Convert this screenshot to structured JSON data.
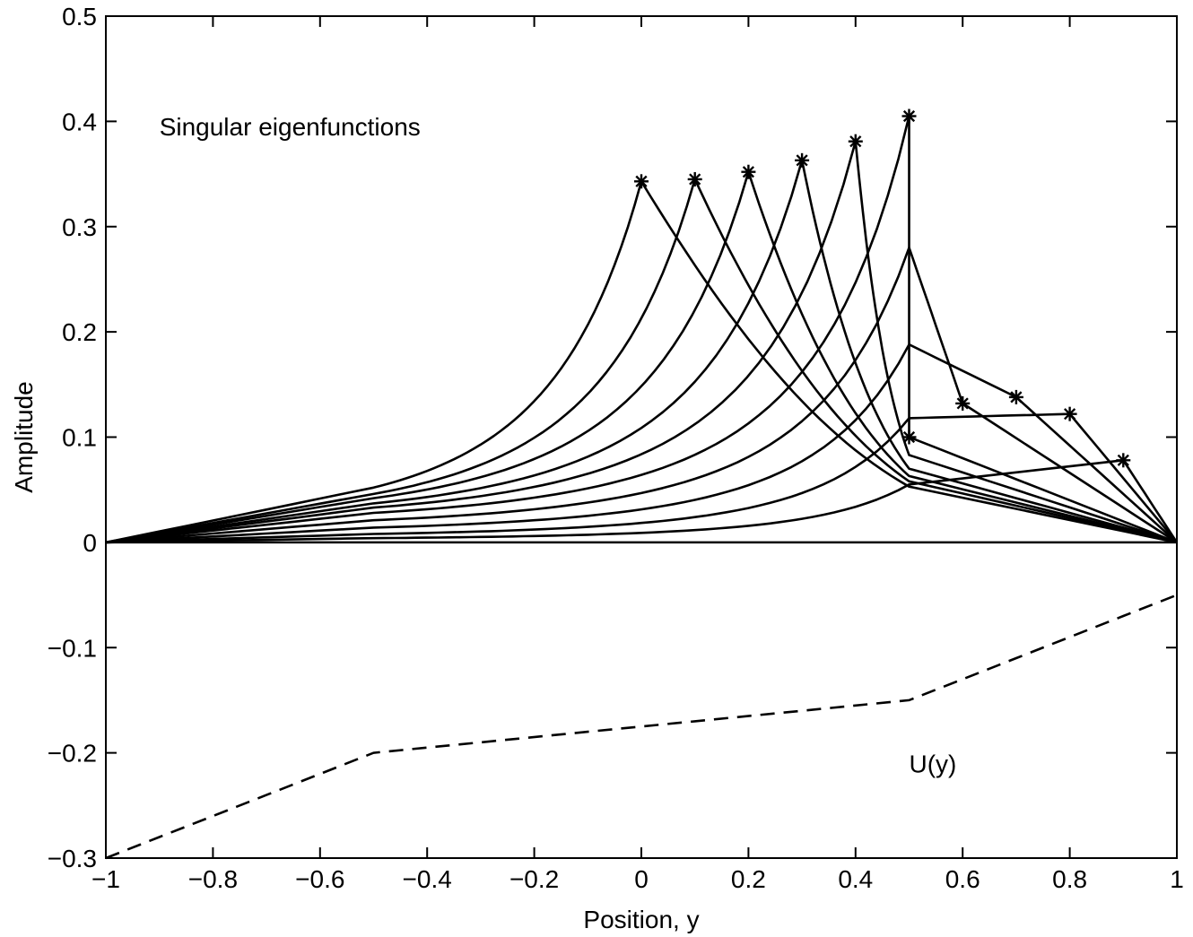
{
  "chart_data": {
    "type": "line",
    "xlabel": "Position, y",
    "ylabel": "Amplitude",
    "xlim": [
      -1,
      1
    ],
    "ylim": [
      -0.3,
      0.5
    ],
    "xticks": [
      -1,
      -0.8,
      -0.6,
      -0.4,
      -0.2,
      0,
      0.2,
      0.4,
      0.6,
      0.8,
      1
    ],
    "xtick_labels": [
      "−1",
      "−0.8",
      "−0.6",
      "−0.4",
      "−0.2",
      "0",
      "0.2",
      "0.4",
      "0.6",
      "0.8",
      "1"
    ],
    "yticks": [
      -0.3,
      -0.2,
      -0.1,
      0,
      0.1,
      0.2,
      0.3,
      0.4,
      0.5
    ],
    "ytick_labels": [
      "−0.3",
      "−0.2",
      "−0.1",
      "0",
      "0.1",
      "0.2",
      "0.3",
      "0.4",
      "0.5"
    ],
    "grid": false,
    "annotations": [
      {
        "text": "Singular eigenfunctions",
        "x": -0.9,
        "y": 0.395
      },
      {
        "text": "U(y)",
        "x": 0.5,
        "y": -0.21
      }
    ],
    "eigenfunctions": [
      {
        "yc": 0.0,
        "peak": 0.343,
        "at_minus_half": 0.052,
        "at_half": 0.053
      },
      {
        "yc": 0.1,
        "peak": 0.345,
        "at_minus_half": 0.046,
        "at_half": 0.058
      },
      {
        "yc": 0.2,
        "peak": 0.352,
        "at_minus_half": 0.042,
        "at_half": 0.063
      },
      {
        "yc": 0.3,
        "peak": 0.363,
        "at_minus_half": 0.037,
        "at_half": 0.07
      },
      {
        "yc": 0.4,
        "peak": 0.381,
        "at_minus_half": 0.033,
        "at_half": 0.083
      },
      {
        "yc": 0.5,
        "peak": 0.405,
        "at_minus_half": 0.028,
        "at_half": 0.405,
        "at_half_right": 0.1
      },
      {
        "yc": 0.6,
        "peak": 0.132,
        "at_minus_half": 0.021,
        "at_half": 0.28
      },
      {
        "yc": 0.7,
        "peak": 0.138,
        "at_minus_half": 0.014,
        "at_half": 0.188
      },
      {
        "yc": 0.8,
        "peak": 0.122,
        "at_minus_half": 0.008,
        "at_half": 0.118
      },
      {
        "yc": 0.9,
        "peak": 0.078,
        "at_minus_half": 0.004,
        "at_half": 0.055
      }
    ],
    "zero_line": {
      "x": [
        -1,
        1
      ],
      "y": [
        0,
        0
      ]
    },
    "series": [
      {
        "style": "dashed",
        "x": [
          -1,
          -0.9,
          -0.8,
          -0.7,
          -0.6,
          -0.5,
          -0.3,
          -0.1,
          0.1,
          0.3,
          0.5,
          0.6,
          0.7,
          0.8,
          0.9,
          1.0
        ],
        "y": [
          -0.3,
          -0.28,
          -0.26,
          -0.24,
          -0.22,
          -0.2,
          -0.19,
          -0.18,
          -0.17,
          -0.16,
          -0.15,
          -0.13,
          -0.11,
          -0.09,
          -0.07,
          -0.05
        ]
      }
    ]
  }
}
